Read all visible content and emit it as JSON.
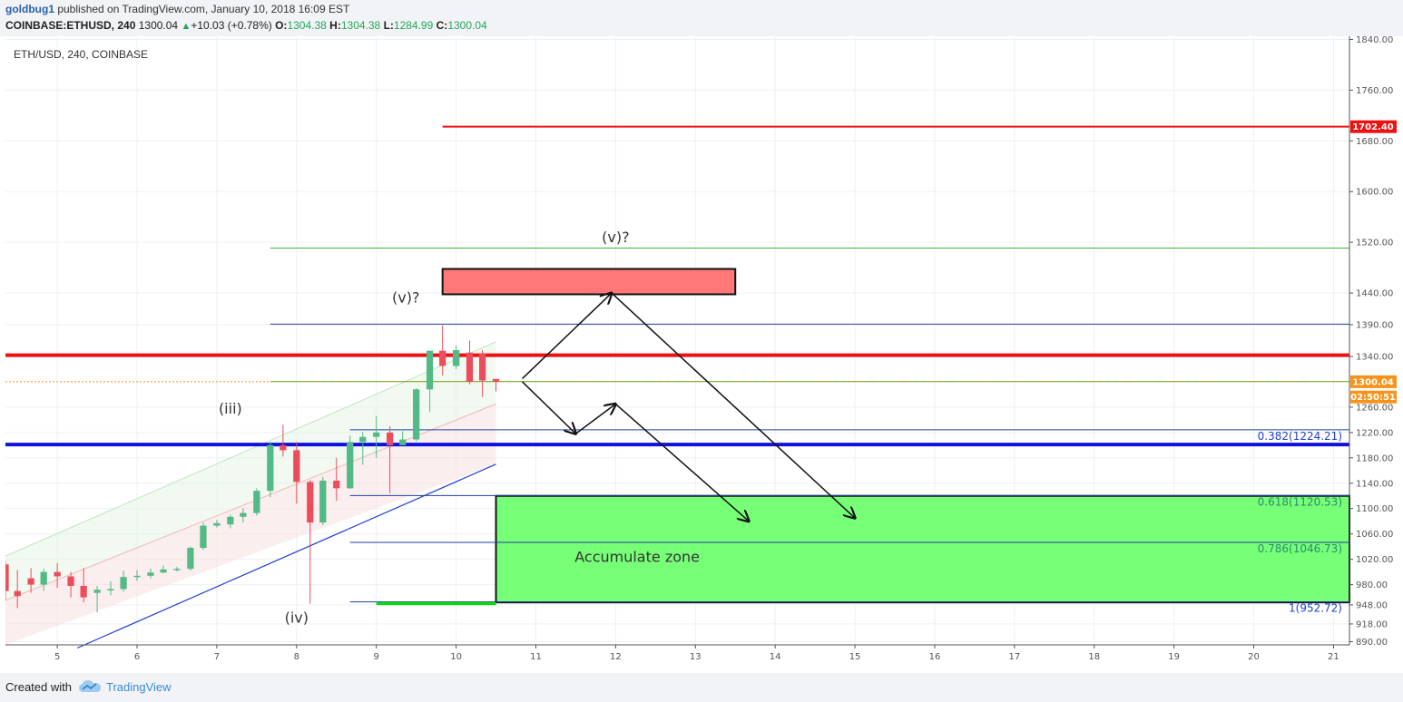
{
  "header": {
    "user": "goldbug1",
    "published": " published on TradingView.com, January 10, 2018 16:09 EST",
    "symbol_line": "COINBASE:ETHUSD, 240",
    "last": "1300.04",
    "change": "+10.03 (+0.78%)",
    "o_label": "O:",
    "o": "1304.38",
    "h_label": "H:",
    "h": "1304.38",
    "l_label": "L:",
    "l": "1284.99",
    "c_label": "C:",
    "c": "1300.04"
  },
  "footer": {
    "created_with": "Created with",
    "brand": "TradingView"
  },
  "colors": {
    "up": "#53b987",
    "down": "#eb4d5c",
    "red_line": "#ee1111",
    "blue_line": "#1111dd",
    "green_zone": "#77ff77",
    "red_zone": "#ff7777"
  },
  "chart_data": {
    "type": "candlestick",
    "title": "ETH/USD, 240, COINBASE",
    "y_range": [
      885,
      1845
    ],
    "x_range": [
      4.35,
      21.2
    ],
    "y_ticks": [
      1840,
      1760,
      1680,
      1600,
      1520,
      1440,
      1390,
      1340,
      1260,
      1220,
      1180,
      1140,
      1100,
      1060,
      1020,
      980,
      948,
      918,
      890
    ],
    "y_tick_labels": [
      "1840.00",
      "1760.00",
      "1680.00",
      "1600.00",
      "1520.00",
      "1440.00",
      "1390.00",
      "1340.00",
      "1260.00",
      "1220.00",
      "1180.00",
      "1140.00",
      "1100.00",
      "1060.00",
      "1020.00",
      "980.00",
      "948.00",
      "918.00",
      "890.00"
    ],
    "x_ticks": [
      5,
      6,
      7,
      8,
      9,
      10,
      11,
      12,
      13,
      14,
      15,
      16,
      17,
      18,
      19,
      20,
      21
    ],
    "x_tick_labels": [
      "5",
      "6",
      "7",
      "8",
      "9",
      "10",
      "11",
      "12",
      "13",
      "14",
      "15",
      "16",
      "17",
      "18",
      "19",
      "20",
      "21"
    ],
    "price_tags": [
      {
        "value": 1702.4,
        "label": "1702.40",
        "color": "#ee1111"
      },
      {
        "value": 1300.04,
        "label": "1300.04",
        "color": "#f7931a"
      },
      {
        "value": 1276,
        "label": "02:50:51",
        "color": "#f7931a"
      }
    ],
    "candles": [
      [
        4.35,
        1012,
        1017,
        955,
        970
      ],
      [
        4.5,
        970,
        1003,
        943,
        962
      ],
      [
        4.67,
        990,
        1006,
        967,
        980
      ],
      [
        4.83,
        980,
        1005,
        970,
        1000
      ],
      [
        5.0,
        1000,
        1014,
        975,
        993
      ],
      [
        5.17,
        993,
        1000,
        960,
        978
      ],
      [
        5.33,
        978,
        1006,
        952,
        960
      ],
      [
        5.5,
        967,
        978,
        936,
        972
      ],
      [
        5.67,
        972,
        985,
        963,
        973
      ],
      [
        5.83,
        973,
        1002,
        969,
        992
      ],
      [
        6.0,
        992,
        1003,
        986,
        994
      ],
      [
        6.17,
        994,
        1005,
        990,
        999
      ],
      [
        6.33,
        999,
        1010,
        998,
        1004
      ],
      [
        6.5,
        1004,
        1008,
        1001,
        1005
      ],
      [
        6.67,
        1005,
        1040,
        1002,
        1038
      ],
      [
        6.83,
        1038,
        1078,
        1035,
        1073
      ],
      [
        7.0,
        1073,
        1082,
        1070,
        1077
      ],
      [
        7.17,
        1075,
        1090,
        1069,
        1087
      ],
      [
        7.33,
        1087,
        1101,
        1078,
        1093
      ],
      [
        7.5,
        1093,
        1132,
        1089,
        1128
      ],
      [
        7.67,
        1128,
        1205,
        1118,
        1200
      ],
      [
        7.83,
        1200,
        1232,
        1182,
        1192
      ],
      [
        8.0,
        1192,
        1205,
        1108,
        1142
      ],
      [
        8.17,
        1142,
        1145,
        950,
        1078
      ],
      [
        8.33,
        1078,
        1150,
        1074,
        1144
      ],
      [
        8.5,
        1144,
        1180,
        1112,
        1132
      ],
      [
        8.67,
        1132,
        1215,
        1131,
        1205
      ],
      [
        8.83,
        1205,
        1221,
        1169,
        1213
      ],
      [
        9.0,
        1213,
        1246,
        1180,
        1220
      ],
      [
        9.17,
        1220,
        1230,
        1124,
        1200
      ],
      [
        9.33,
        1200,
        1222,
        1200,
        1209
      ],
      [
        9.5,
        1209,
        1290,
        1206,
        1288
      ],
      [
        9.67,
        1288,
        1349,
        1252,
        1349
      ],
      [
        9.83,
        1349,
        1389,
        1310,
        1325
      ],
      [
        10.0,
        1325,
        1357,
        1320,
        1350
      ],
      [
        10.17,
        1346,
        1365,
        1296,
        1300
      ],
      [
        10.33,
        1345,
        1350,
        1276,
        1302
      ],
      [
        10.5,
        1304.38,
        1304.38,
        1284.99,
        1300.04
      ]
    ],
    "annotations": {
      "labels": [
        {
          "text": "(iii)",
          "x": 7.17,
          "y": 1250
        },
        {
          "text": "(iv)",
          "x": 8.0,
          "y": 920
        },
        {
          "text": "(v)?",
          "x": 9.37,
          "y": 1425
        },
        {
          "text": "(v)?",
          "x": 12.0,
          "y": 1520
        },
        {
          "text": "Accumulate zone",
          "x": 12.27,
          "y": 1016
        }
      ],
      "red_lines": [
        {
          "y": 1702.4,
          "x1": 9.83,
          "x2": 21.2
        },
        {
          "y": 1342,
          "x1": 4.35,
          "x2": 21.2
        }
      ],
      "blue_thick_line": {
        "y": 1201,
        "x1": 4.35,
        "x2": 21.2
      },
      "green_thin_lines": [
        {
          "y": 1511,
          "x1": 7.67,
          "x2": 21.2
        },
        {
          "y": 1300.5,
          "x1": 7.67,
          "x2": 21.2
        }
      ],
      "blue_thin_lines": [
        {
          "y": 1391,
          "x1": 7.67,
          "x2": 21.2
        }
      ],
      "fib_levels": [
        {
          "label": "0.382(1224.21)",
          "y": 1224.21,
          "color": "#1f3fd1"
        },
        {
          "label": "0.618(1120.53)",
          "y": 1120.53,
          "color": "#2a8a6f"
        },
        {
          "label": "0.786(1046.73)",
          "y": 1046.73,
          "color": "#2a8a6f"
        },
        {
          "label": "1(952.72)",
          "y": 952.72,
          "color": "#1f3fd1"
        }
      ],
      "green_zone": {
        "x1": 10.5,
        "x2": 21.2,
        "y1": 1120,
        "y2": 952
      },
      "red_zone": {
        "x1": 9.83,
        "x2": 13.5,
        "y1": 1478,
        "y2": 1438
      }
    }
  }
}
